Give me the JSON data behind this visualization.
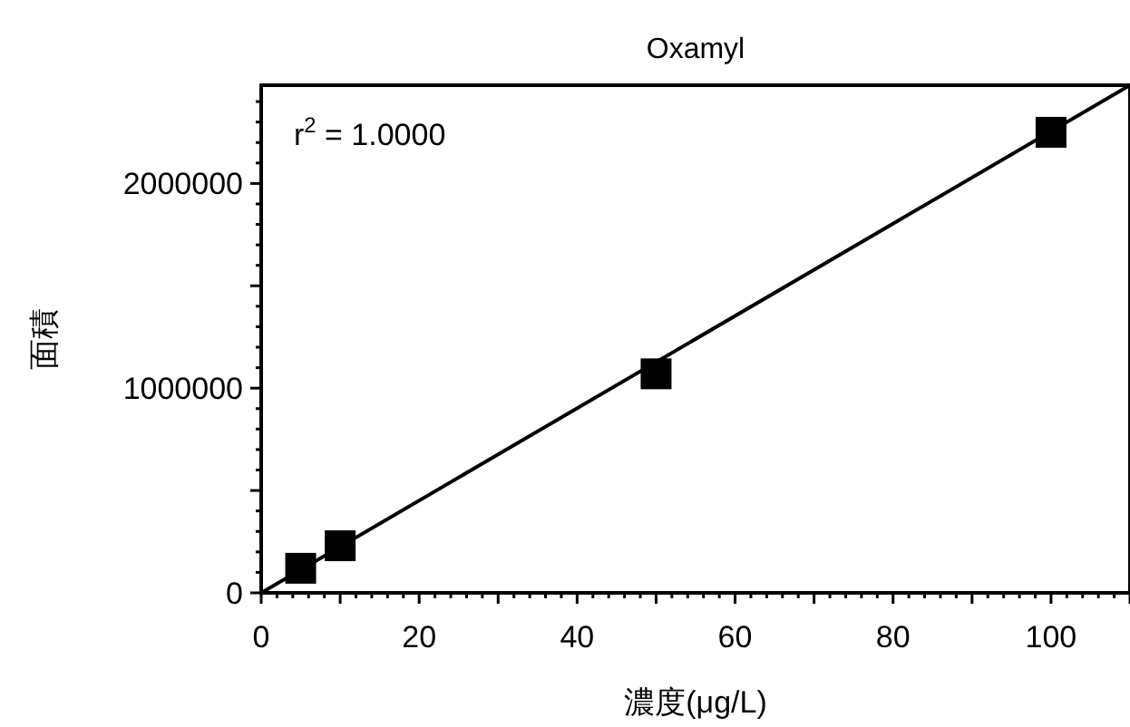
{
  "chart_data": {
    "type": "scatter",
    "title": "Oxamyl",
    "xlabel": "濃度(μg/L)",
    "ylabel": "面積",
    "annotations": [
      "r$^{2}$ = 1.0000"
    ],
    "xlim": [
      0,
      110
    ],
    "ylim": [
      0,
      2480000
    ],
    "xticks": [
      0,
      {
        "value": 10,
        "label": null
      },
      20,
      {
        "value": 30,
        "label": null
      },
      40,
      {
        "value": 50,
        "label": null
      },
      60,
      {
        "value": 70,
        "label": null
      },
      80,
      {
        "value": 90,
        "label": null
      },
      100,
      {
        "value": 110,
        "label": null
      }
    ],
    "yticks": [
      0,
      {
        "value": 500000,
        "label": null
      },
      1000000,
      {
        "value": 1500000,
        "label": null
      },
      2000000
    ],
    "grid": false,
    "series": [
      {
        "marker": "square",
        "color": "#000000",
        "x": [
          5,
          10,
          50,
          100
        ],
        "values": [
          120000,
          230000,
          1070000,
          2250000
        ]
      },
      {
        "type": "line",
        "marker": "none",
        "color": "#000000",
        "x": [
          0,
          110
        ],
        "values": [
          0,
          2480000
        ]
      }
    ]
  }
}
